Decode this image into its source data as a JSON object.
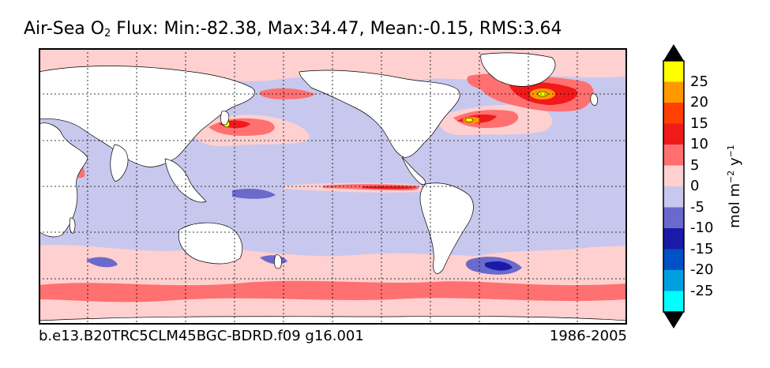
{
  "chart_data": {
    "type": "contour-map",
    "title_main": "Air-Sea O",
    "title_sub": "2",
    "title_rest": " Flux: Min:-82.38, Max:34.47, Mean:-0.15, RMS:3.64",
    "stats": {
      "min": -82.38,
      "max": 34.47,
      "mean": -0.15,
      "rms": 3.64
    },
    "colorbar": {
      "unit_prefix": "mol m",
      "unit_exp1": "−2",
      "unit_mid": " y",
      "unit_exp2": "−1",
      "tick_labels": [
        "25",
        "20",
        "15",
        "10",
        "5",
        "0",
        "-5",
        "-10",
        "-15",
        "-20",
        "-25"
      ],
      "levels": [
        -30,
        -25,
        -20,
        -15,
        -10,
        -5,
        0,
        5,
        10,
        15,
        20,
        25,
        30
      ],
      "colors": [
        "#00ffff",
        "#00a0e0",
        "#0050c8",
        "#1a1aa8",
        "#6a6acc",
        "#c8c8ee",
        "#ffd0d0",
        "#ff7070",
        "#f01a1a",
        "#ff4000",
        "#ff9900",
        "#ffff00"
      ],
      "extend": "both"
    },
    "land_color": "#ffffff",
    "graticule": "dashed",
    "run_id": "b.e13.B20TRC5CLM45BGC-BDRD.f09 g16.001",
    "period": "1986-2005"
  }
}
